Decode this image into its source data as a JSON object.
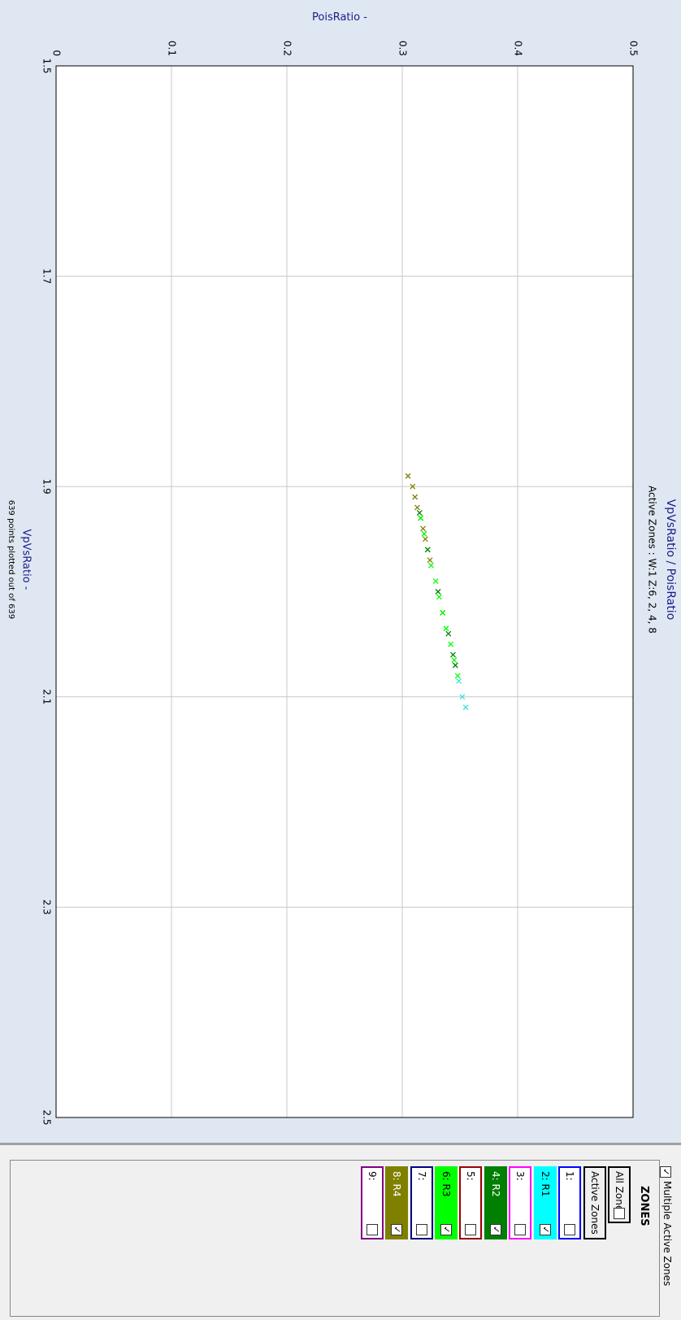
{
  "chart_data": {
    "type": "scatter",
    "title": "VpVsRatio / PoisRatio",
    "subtitle": "Active Zones :  W:1 Z:6, 2, 4, 8",
    "x_label": "VpVsRatio -",
    "y_label": "PoisRatio -",
    "footnote": "639 points plotted out of 639",
    "xlim": [
      1.5,
      2.5
    ],
    "xticks": [
      1.5,
      1.7,
      1.9,
      2.1,
      2.3,
      2.5
    ],
    "ylim": [
      0,
      0.5
    ],
    "yticks": [
      0,
      0.1,
      0.2,
      0.3,
      0.4,
      0.5
    ],
    "grid": true,
    "series": [
      {
        "color": "#808000",
        "x": [
          1.89,
          1.9,
          1.91,
          1.92,
          1.93,
          1.94,
          1.95,
          1.97,
          2.02
        ],
        "values": [
          0.305,
          0.309,
          0.311,
          0.313,
          0.316,
          0.318,
          0.32,
          0.324,
          0.335
        ]
      },
      {
        "color": "#00ff00",
        "x": [
          1.93,
          1.945,
          1.96,
          1.975,
          1.99,
          2.005,
          2.02,
          2.035,
          2.05,
          2.065,
          2.08
        ],
        "values": [
          0.316,
          0.319,
          0.322,
          0.325,
          0.329,
          0.332,
          0.335,
          0.338,
          0.342,
          0.345,
          0.348
        ]
      },
      {
        "color": "#007f00",
        "x": [
          1.925,
          1.96,
          2.0,
          2.04,
          2.06,
          2.07
        ],
        "values": [
          0.315,
          0.322,
          0.331,
          0.34,
          0.344,
          0.346
        ]
      },
      {
        "color": "#40e0e0",
        "x": [
          2.085,
          2.1,
          2.11
        ],
        "values": [
          0.349,
          0.352,
          0.355
        ]
      }
    ]
  },
  "zones_panel": {
    "multiple_active_zones": {
      "label": "Multiple Active Zones",
      "checked": true
    },
    "title": "ZONES",
    "all_zones": {
      "label": "All Zones",
      "checked": false
    },
    "active_zones_label": "Active Zones",
    "zones": [
      {
        "label": "1:",
        "color": "#0000ff",
        "checked": false
      },
      {
        "label": "2: R1",
        "color": "#00ffff",
        "checked": true
      },
      {
        "label": "3:",
        "color": "#ff00ff",
        "checked": false
      },
      {
        "label": "4: R2",
        "color": "#007f00",
        "checked": true
      },
      {
        "label": "5:",
        "color": "#9b0000",
        "checked": false
      },
      {
        "label": "6: R3",
        "color": "#00ff00",
        "checked": true
      },
      {
        "label": "7:",
        "color": "#00007f",
        "checked": false
      },
      {
        "label": "8: R4",
        "color": "#808000",
        "checked": true
      },
      {
        "label": "9:",
        "color": "#800080",
        "checked": false
      }
    ]
  }
}
